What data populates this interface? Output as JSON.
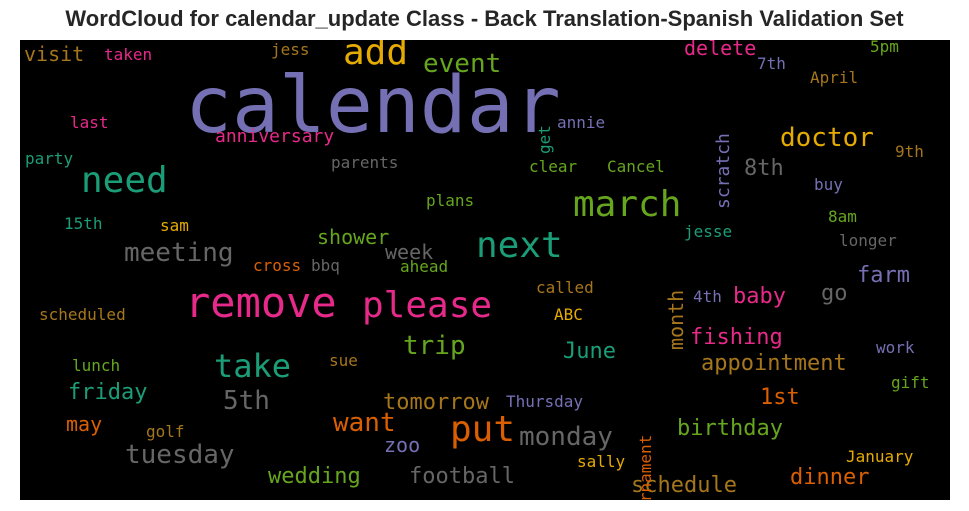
{
  "title": "WordCloud for calendar_update Class - Back Translation-Spanish Validation Set",
  "colors": {
    "background": "#000000",
    "title": "#262626"
  },
  "chart_data": {
    "type": "wordcloud",
    "words": [
      {
        "text": "calendar",
        "color": "#7570b3"
      },
      {
        "text": "remove",
        "color": "#e7298a"
      },
      {
        "text": "please",
        "color": "#e7298a"
      },
      {
        "text": "add",
        "color": "#e6ab02"
      },
      {
        "text": "march",
        "color": "#66a61e"
      },
      {
        "text": "next",
        "color": "#1b9e77"
      },
      {
        "text": "need",
        "color": "#1b9e77"
      },
      {
        "text": "put",
        "color": "#d95f02"
      },
      {
        "text": "take",
        "color": "#1b9e77"
      },
      {
        "text": "meeting",
        "color": "#666666"
      },
      {
        "text": "tuesday",
        "color": "#666666"
      },
      {
        "text": "doctor",
        "color": "#e6ab02"
      },
      {
        "text": "monday",
        "color": "#666666"
      },
      {
        "text": "event",
        "color": "#66a61e"
      },
      {
        "text": "trip",
        "color": "#66a61e"
      },
      {
        "text": "want",
        "color": "#d95f02"
      },
      {
        "text": "5th",
        "color": "#666666"
      },
      {
        "text": "appointment",
        "color": "#a6761d"
      },
      {
        "text": "fishing",
        "color": "#e7298a"
      },
      {
        "text": "wedding",
        "color": "#66a61e"
      },
      {
        "text": "football",
        "color": "#666666"
      },
      {
        "text": "schedule",
        "color": "#a6761d"
      },
      {
        "text": "birthday",
        "color": "#66a61e"
      },
      {
        "text": "tomorrow",
        "color": "#a6761d"
      },
      {
        "text": "friday",
        "color": "#1b9e77"
      },
      {
        "text": "visit",
        "color": "#a6761d"
      },
      {
        "text": "shower",
        "color": "#66a61e"
      },
      {
        "text": "delete",
        "color": "#e7298a"
      },
      {
        "text": "8th",
        "color": "#666666"
      },
      {
        "text": "dinner",
        "color": "#d95f02"
      },
      {
        "text": "month",
        "color": "#a6761d"
      },
      {
        "text": "farm",
        "color": "#7570b3"
      },
      {
        "text": "baby",
        "color": "#e7298a"
      },
      {
        "text": "June",
        "color": "#1b9e77"
      },
      {
        "text": "week",
        "color": "#666666"
      },
      {
        "text": "1st",
        "color": "#d95f02"
      },
      {
        "text": "zoo",
        "color": "#7570b3"
      },
      {
        "text": "may",
        "color": "#d95f02"
      },
      {
        "text": "go",
        "color": "#666666"
      },
      {
        "text": "scratch",
        "color": "#7570b3"
      },
      {
        "text": "anniversary",
        "color": "#e7298a"
      },
      {
        "text": "parents",
        "color": "#666666"
      },
      {
        "text": "party",
        "color": "#1b9e77"
      },
      {
        "text": "last",
        "color": "#e7298a"
      },
      {
        "text": "taken",
        "color": "#e7298a"
      },
      {
        "text": "jess",
        "color": "#a6761d"
      },
      {
        "text": "7th",
        "color": "#7570b3"
      },
      {
        "text": "5pm",
        "color": "#66a61e"
      },
      {
        "text": "April",
        "color": "#a6761d"
      },
      {
        "text": "annie",
        "color": "#7570b3"
      },
      {
        "text": "get",
        "color": "#1b9e77"
      },
      {
        "text": "clear",
        "color": "#66a61e"
      },
      {
        "text": "Cancel",
        "color": "#66a61e"
      },
      {
        "text": "9th",
        "color": "#a6761d"
      },
      {
        "text": "buy",
        "color": "#7570b3"
      },
      {
        "text": "8am",
        "color": "#66a61e"
      },
      {
        "text": "plans",
        "color": "#66a61e"
      },
      {
        "text": "15th",
        "color": "#1b9e77"
      },
      {
        "text": "sam",
        "color": "#e6ab02"
      },
      {
        "text": "jesse",
        "color": "#1b9e77"
      },
      {
        "text": "longer",
        "color": "#666666"
      },
      {
        "text": "cross",
        "color": "#d95f02"
      },
      {
        "text": "bbq",
        "color": "#666666"
      },
      {
        "text": "ahead",
        "color": "#66a61e"
      },
      {
        "text": "called",
        "color": "#a6761d"
      },
      {
        "text": "4th",
        "color": "#7570b3"
      },
      {
        "text": "scheduled",
        "color": "#a6761d"
      },
      {
        "text": "ABC",
        "color": "#e6ab02"
      },
      {
        "text": "lunch",
        "color": "#66a61e"
      },
      {
        "text": "sue",
        "color": "#a6761d"
      },
      {
        "text": "tournament",
        "color": "#d95f02"
      },
      {
        "text": "work",
        "color": "#7570b3"
      },
      {
        "text": "gift",
        "color": "#66a61e"
      },
      {
        "text": "Thursday",
        "color": "#7570b3"
      },
      {
        "text": "golf",
        "color": "#a6761d"
      },
      {
        "text": "sally",
        "color": "#e6ab02"
      },
      {
        "text": "January",
        "color": "#e6ab02"
      }
    ]
  }
}
